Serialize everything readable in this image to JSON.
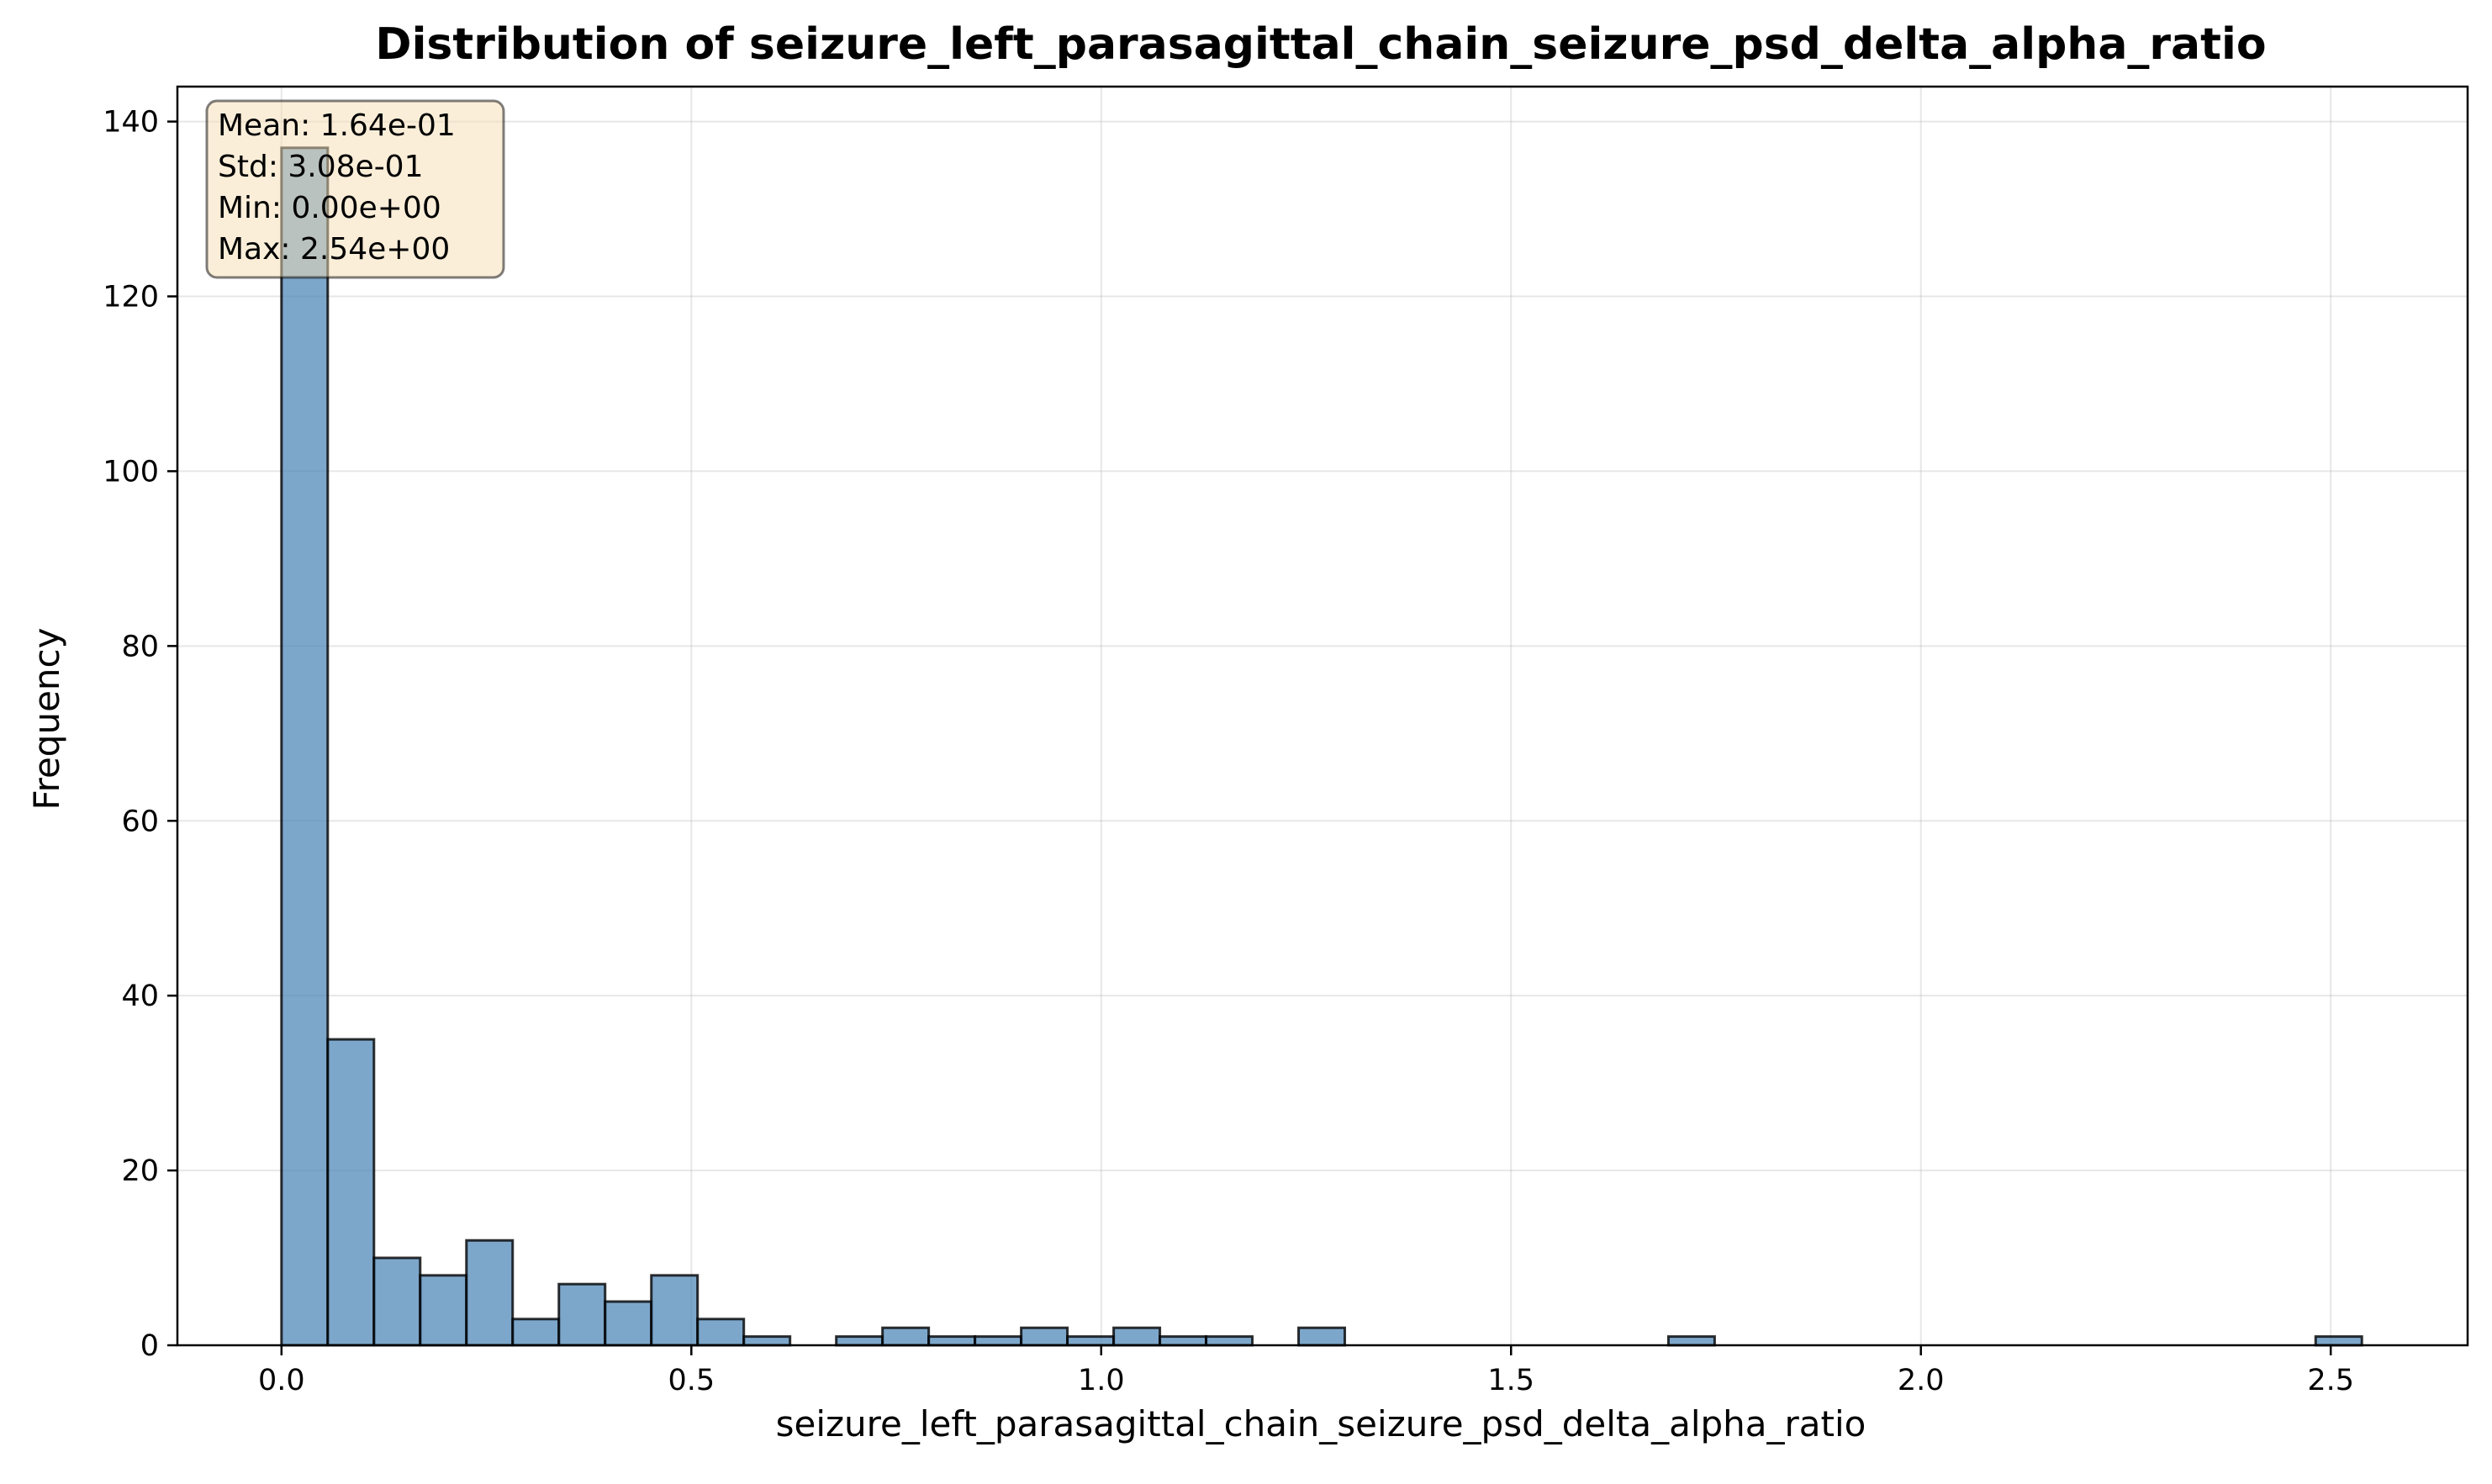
{
  "chart_data": {
    "type": "bar",
    "title": "Distribution of seizure_left_parasagittal_chain_seizure_psd_delta_alpha_ratio",
    "xlabel": "seizure_left_parasagittal_chain_seizure_psd_delta_alpha_ratio",
    "ylabel": "Frequency",
    "xlim": [
      -0.127,
      2.667
    ],
    "ylim": [
      0,
      144
    ],
    "xticks": [
      0.0,
      0.5,
      1.0,
      1.5,
      2.0,
      2.5
    ],
    "xtick_labels": [
      "0.0",
      "0.5",
      "1.0",
      "1.5",
      "2.0",
      "2.5"
    ],
    "yticks": [
      0,
      20,
      40,
      60,
      80,
      100,
      120,
      140
    ],
    "ytick_labels": [
      "0",
      "20",
      "40",
      "60",
      "80",
      "100",
      "120",
      "140"
    ],
    "grid": true,
    "bin_start": 0.0,
    "bin_width": 0.0564,
    "values": [
      137,
      35,
      10,
      8,
      12,
      3,
      7,
      5,
      8,
      3,
      1,
      0,
      1,
      2,
      1,
      1,
      2,
      1,
      2,
      1,
      1,
      0,
      2,
      0,
      0,
      0,
      0,
      0,
      0,
      0,
      1,
      0,
      0,
      0,
      0,
      0,
      0,
      0,
      0,
      0,
      0,
      0,
      0,
      0,
      1
    ],
    "bar_color": "#4682b4",
    "stats_box": {
      "lines": [
        "Mean: 1.64e-01",
        "Std: 3.08e-01",
        "Min: 0.00e+00",
        "Max: 2.54e+00"
      ],
      "placement": "top-left",
      "background": "#f5deb3"
    }
  }
}
